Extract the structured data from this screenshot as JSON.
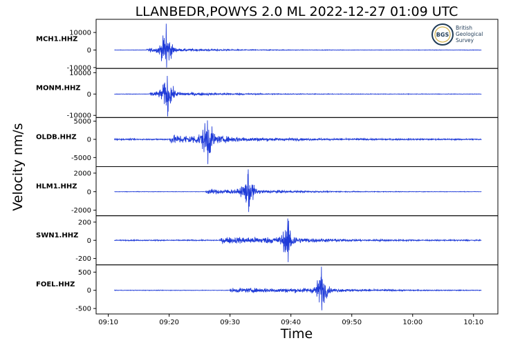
{
  "figure": {
    "title": "LLANBEDR,POWYS 2.0 ML   2022-12-27 01:09 UTC",
    "ylabel": "Velocity nm/s",
    "xlabel": "Time"
  },
  "logo": {
    "abbr": "BGS",
    "line1": "British",
    "line2": "Geological",
    "line3": "Survey"
  },
  "colors": {
    "trace": "#1f3bd8",
    "axes": "#000000",
    "background": "#ffffff"
  },
  "chart_data": {
    "type": "line",
    "x_unit": "time (HH:MM UTC)",
    "xlim": [
      "09:08",
      "10:14"
    ],
    "x_ticks": [
      "09:10",
      "09:20",
      "09:30",
      "09:40",
      "09:50",
      "10:00",
      "10:10"
    ],
    "trace_span": [
      "09:11",
      "10:11.3"
    ],
    "series": [
      {
        "name": "MCH1.HHZ",
        "ylim": [
          -10500,
          17500
        ],
        "yticks": [
          10000,
          0,
          -10000
        ],
        "ytick_labels": [
          "10000",
          "0",
          "-10000"
        ],
        "onset": "09:16.3",
        "peak": "09:19.5",
        "max_pos": 15000,
        "max_neg": -10000,
        "coda_level": 1500,
        "noise_level": 150
      },
      {
        "name": "MONM.HHZ",
        "ylim": [
          -11000,
          12000
        ],
        "yticks": [
          10000,
          0,
          -10000
        ],
        "ytick_labels": [
          "10000",
          "0",
          "-10000"
        ],
        "onset": "09:16.8",
        "peak": "09:19.7",
        "max_pos": 8500,
        "max_neg": -10500,
        "coda_level": 1600,
        "noise_level": 150
      },
      {
        "name": "OLDB.HHZ",
        "ylim": [
          -7500,
          6000
        ],
        "yticks": [
          5000,
          0,
          -5000
        ],
        "ytick_labels": [
          "5000",
          "0",
          "-5000"
        ],
        "onset": "09:20.0",
        "peak": "09:26.3",
        "max_pos": 5200,
        "max_neg": -6800,
        "coda_level": 1500,
        "noise_level": 250
      },
      {
        "name": "HLM1.HHZ",
        "ylim": [
          -2600,
          2700
        ],
        "yticks": [
          2000,
          0,
          -2000
        ],
        "ytick_labels": [
          "2000",
          "0",
          "-2000"
        ],
        "onset": "09:26.0",
        "peak": "09:33.0",
        "max_pos": 2400,
        "max_neg": -2200,
        "coda_level": 350,
        "noise_level": 30
      },
      {
        "name": "SWN1.HHZ",
        "ylim": [
          -270,
          270
        ],
        "yticks": [
          200,
          0,
          -200
        ],
        "ytick_labels": [
          "200",
          "0",
          "-200"
        ],
        "onset": "09:28.5",
        "peak": "09:39.5",
        "max_pos": 240,
        "max_neg": -240,
        "coda_level": 45,
        "noise_level": 8
      },
      {
        "name": "FOEL.HHZ",
        "ylim": [
          -650,
          700
        ],
        "yticks": [
          500,
          0,
          -500
        ],
        "ytick_labels": [
          "500",
          "0",
          "-500"
        ],
        "onset": "09:30.0",
        "peak": "09:45.0",
        "max_pos": 650,
        "max_neg": -550,
        "coda_level": 80,
        "noise_level": 10
      }
    ]
  }
}
